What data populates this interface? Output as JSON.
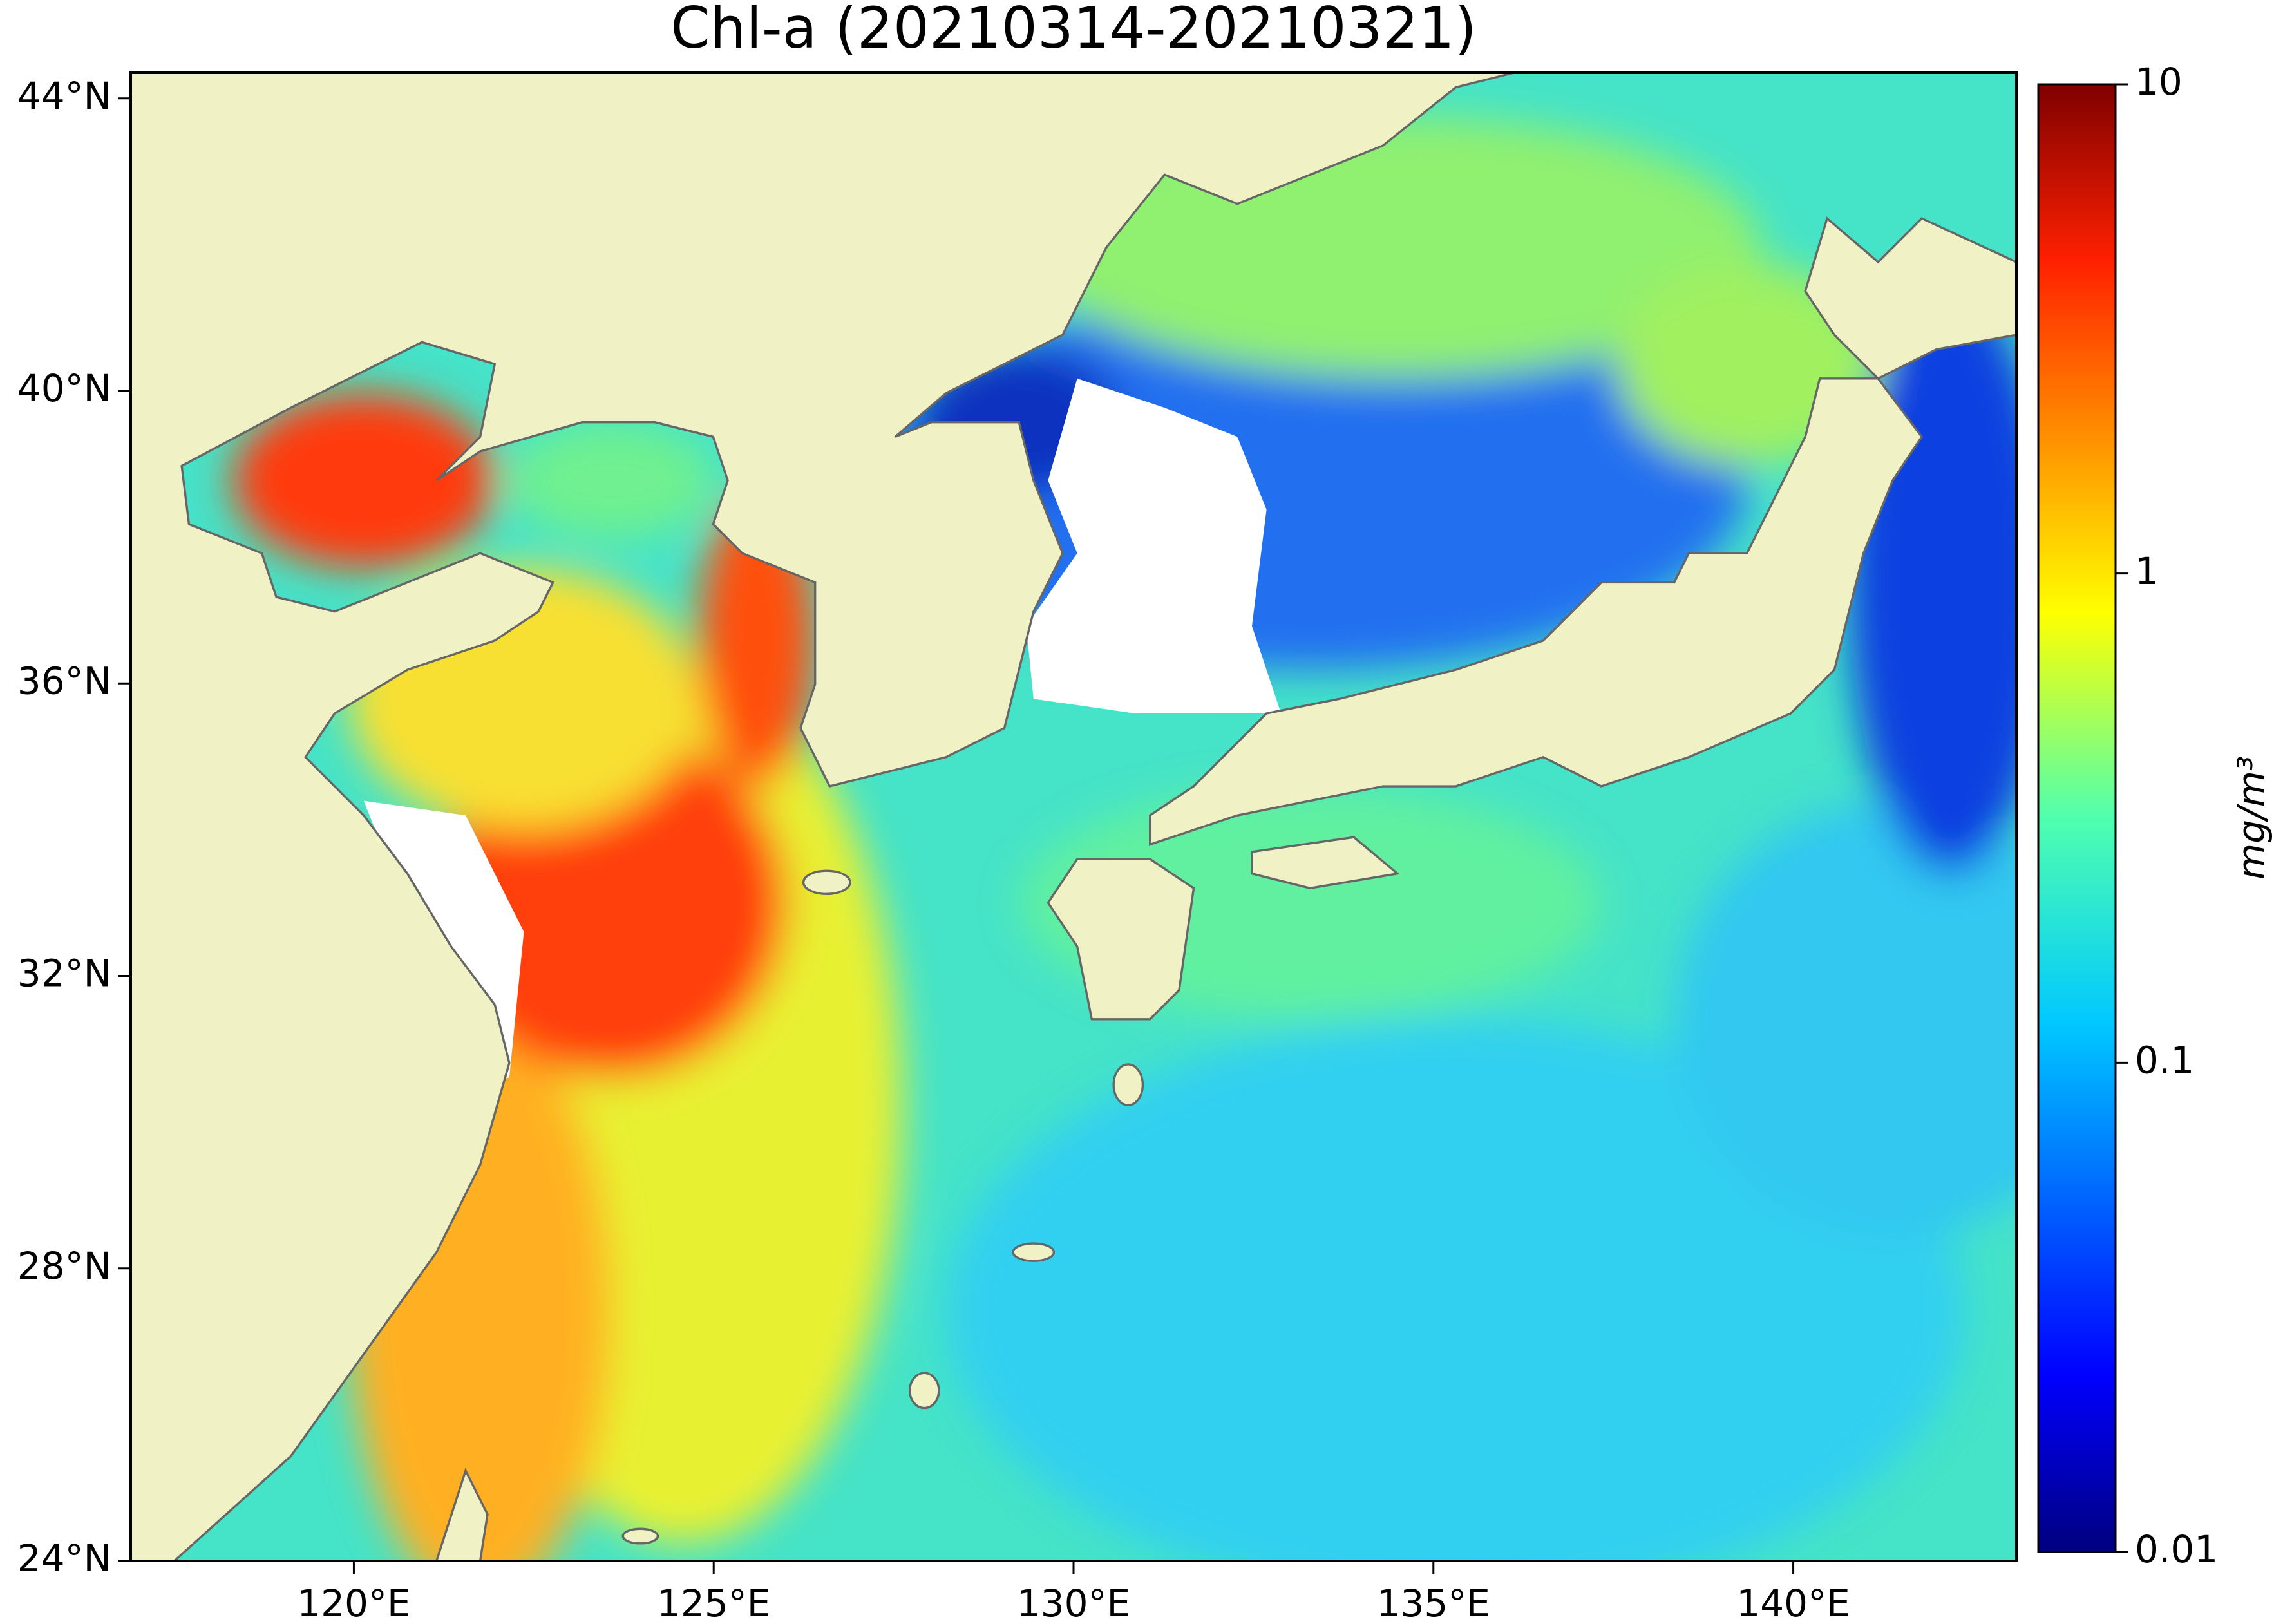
{
  "title": "Chl-a (20210314-20210321)",
  "map": {
    "xlim": [
      116.9,
      143.1
    ],
    "ylim": [
      24,
      44.35
    ],
    "xticks": [
      {
        "value": 120,
        "label": "120°E"
      },
      {
        "value": 125,
        "label": "125°E"
      },
      {
        "value": 130,
        "label": "130°E"
      },
      {
        "value": 135,
        "label": "135°E"
      },
      {
        "value": 140,
        "label": "140°E"
      }
    ],
    "yticks": [
      {
        "value": 24,
        "label": "24°N"
      },
      {
        "value": 28,
        "label": "28°N"
      },
      {
        "value": 32,
        "label": "32°N"
      },
      {
        "value": 36,
        "label": "36°N"
      },
      {
        "value": 40,
        "label": "40°N"
      },
      {
        "value": 44,
        "label": "44°N"
      }
    ]
  },
  "colorbar": {
    "label": "mg/m³",
    "scale": "log",
    "lim": [
      0.01,
      10
    ],
    "ticks": [
      0.01,
      0.1,
      1,
      10
    ],
    "colormap": "jet"
  }
}
